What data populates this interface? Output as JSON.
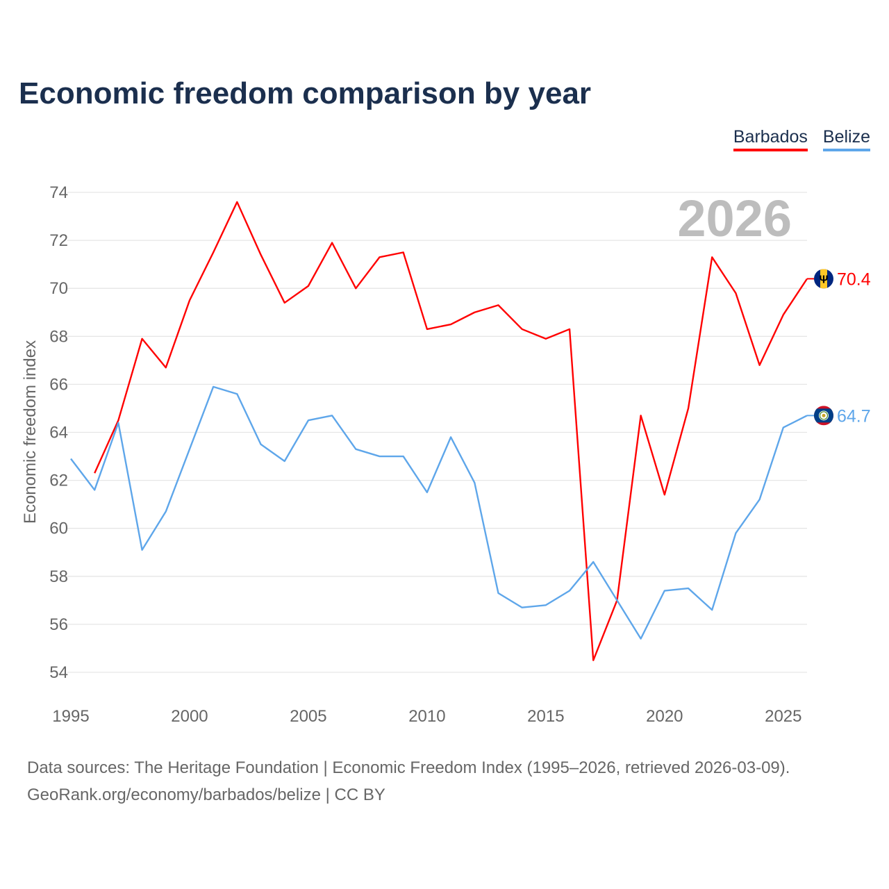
{
  "title": "Economic freedom comparison by year",
  "legend": [
    {
      "name": "Barbados",
      "color": "#ff0000"
    },
    {
      "name": "Belize",
      "color": "#5ea6ea"
    }
  ],
  "footer": {
    "line1": "Data sources: The Heritage Foundation | Economic Freedom Index (1995–2026, retrieved 2026-03-09).",
    "line2": "GeoRank.org/economy/barbados/belize | CC BY"
  },
  "chart_data": {
    "type": "line",
    "title": "Economic freedom comparison by year",
    "xlabel": "",
    "ylabel": "Economic freedom index",
    "year_label": "2026",
    "xlim": [
      1995,
      2026
    ],
    "ylim": [
      54,
      74
    ],
    "x_ticks": [
      "1995",
      "2000",
      "2005",
      "2010",
      "2015",
      "2020",
      "2025"
    ],
    "y_ticks": [
      "54",
      "56",
      "58",
      "60",
      "62",
      "64",
      "66",
      "68",
      "70",
      "72",
      "74"
    ],
    "grid": true,
    "legend_position": "top-right",
    "series": [
      {
        "name": "Barbados",
        "color": "#ff0000",
        "end_label": "70.4",
        "flag": "barbados-flag",
        "x": [
          1996,
          1997,
          1998,
          1999,
          2000,
          2001,
          2002,
          2003,
          2004,
          2005,
          2006,
          2007,
          2008,
          2009,
          2010,
          2011,
          2012,
          2013,
          2014,
          2015,
          2016,
          2017,
          2018,
          2019,
          2020,
          2021,
          2022,
          2023,
          2024,
          2025,
          2026
        ],
        "values": [
          62.3,
          64.5,
          67.9,
          66.7,
          69.5,
          71.5,
          73.6,
          71.4,
          69.4,
          70.1,
          71.9,
          70.0,
          71.3,
          71.5,
          68.3,
          68.5,
          69.0,
          69.3,
          68.3,
          67.9,
          68.3,
          54.5,
          57.0,
          64.7,
          61.4,
          65.0,
          71.3,
          69.8,
          66.8,
          68.9,
          70.4
        ]
      },
      {
        "name": "Belize",
        "color": "#5ea6ea",
        "end_label": "64.7",
        "flag": "belize-flag",
        "x": [
          1995,
          1996,
          1997,
          1998,
          1999,
          2000,
          2001,
          2002,
          2003,
          2004,
          2005,
          2006,
          2007,
          2008,
          2009,
          2010,
          2011,
          2012,
          2013,
          2014,
          2015,
          2016,
          2017,
          2018,
          2019,
          2020,
          2021,
          2022,
          2023,
          2024,
          2025,
          2026
        ],
        "values": [
          62.9,
          61.6,
          64.4,
          59.1,
          60.7,
          63.3,
          65.9,
          65.6,
          63.5,
          62.8,
          64.5,
          64.7,
          63.3,
          63.0,
          63.0,
          61.5,
          63.8,
          61.9,
          57.3,
          56.7,
          56.8,
          57.4,
          58.6,
          57.0,
          55.4,
          57.4,
          57.5,
          56.6,
          59.8,
          61.2,
          64.2,
          64.7
        ]
      }
    ]
  }
}
